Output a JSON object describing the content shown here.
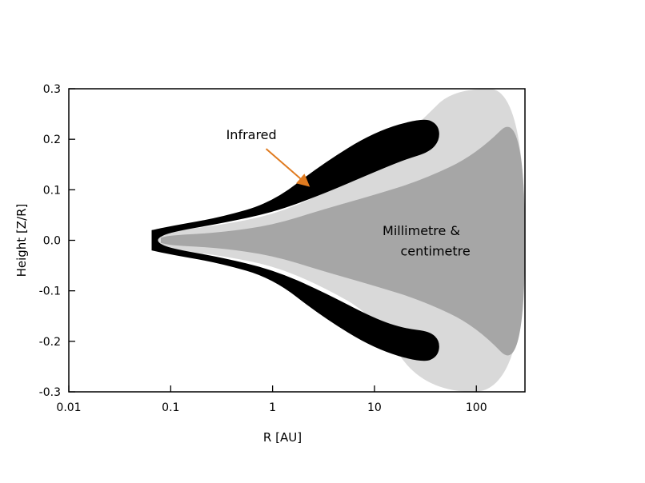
{
  "chart_data": {
    "type": "area",
    "title": "",
    "xlabel": "R [AU]",
    "ylabel": "Height [Z/R]",
    "xscale": "log",
    "xlim": [
      0.01,
      300
    ],
    "ylim": [
      -0.3,
      0.3
    ],
    "xticks": [
      {
        "value": 0.01,
        "label": "0.01"
      },
      {
        "value": 0.1,
        "label": "0.1"
      },
      {
        "value": 1,
        "label": "1"
      },
      {
        "value": 10,
        "label": "10"
      },
      {
        "value": 100,
        "label": "100"
      }
    ],
    "yticks": [
      {
        "value": 0.3,
        "label": "0.3"
      },
      {
        "value": 0.2,
        "label": "0.2"
      },
      {
        "value": 0.1,
        "label": "0.1"
      },
      {
        "value": 0.0,
        "label": "0.0"
      },
      {
        "value": -0.1,
        "label": "-0.1"
      },
      {
        "value": -0.2,
        "label": "-0.2"
      },
      {
        "value": -0.3,
        "label": "-0.3"
      }
    ],
    "grid": false,
    "colors": {
      "light_region": "#d9d9d9",
      "dark_region": "#a6a6a6",
      "infrared_region": "#000000",
      "arrow": "#e07b20"
    },
    "annotations": [
      {
        "text": "Infrared",
        "x": 0.35,
        "y": 0.2,
        "arrow_to": [
          2.2,
          0.11
        ]
      },
      {
        "text": "Millimetre &",
        "x": 12,
        "y": 0.01
      },
      {
        "text": "centimetre",
        "x": 18,
        "y": -0.03
      }
    ],
    "series": [
      {
        "region": "light",
        "upper": [
          [
            0.07,
            0.005
          ],
          [
            0.1,
            0.018
          ],
          [
            0.3,
            0.03
          ],
          [
            1,
            0.05
          ],
          [
            3,
            0.09
          ],
          [
            10,
            0.15
          ],
          [
            30,
            0.24
          ],
          [
            60,
            0.3
          ],
          [
            300,
            0.3
          ]
        ],
        "lower": [
          [
            0.07,
            -0.005
          ],
          [
            0.1,
            -0.018
          ],
          [
            0.3,
            -0.03
          ],
          [
            1,
            -0.05
          ],
          [
            3,
            -0.09
          ],
          [
            10,
            -0.15
          ],
          [
            30,
            -0.3
          ],
          [
            300,
            -0.3
          ]
        ]
      },
      {
        "region": "dark",
        "upper": [
          [
            0.08,
            0.005
          ],
          [
            0.1,
            0.01
          ],
          [
            0.3,
            0.015
          ],
          [
            1,
            0.03
          ],
          [
            3,
            0.06
          ],
          [
            10,
            0.09
          ],
          [
            30,
            0.12
          ],
          [
            100,
            0.17
          ],
          [
            300,
            0.265
          ]
        ],
        "lower": [
          [
            0.08,
            -0.005
          ],
          [
            0.1,
            -0.01
          ],
          [
            0.3,
            -0.015
          ],
          [
            1,
            -0.03
          ],
          [
            3,
            -0.06
          ],
          [
            10,
            -0.09
          ],
          [
            30,
            -0.12
          ],
          [
            100,
            -0.17
          ],
          [
            300,
            -0.27
          ]
        ]
      },
      {
        "region": "infrared",
        "outer": [
          [
            0.065,
            0.02
          ],
          [
            0.1,
            0.028
          ],
          [
            0.3,
            0.045
          ],
          [
            1,
            0.075
          ],
          [
            3,
            0.15
          ],
          [
            10,
            0.215
          ],
          [
            30,
            0.243
          ],
          [
            42,
            0.23
          ],
          [
            44,
            0.2
          ],
          [
            35,
            0.175
          ],
          [
            20,
            0.16
          ],
          [
            10,
            0.135
          ],
          [
            3,
            0.09
          ],
          [
            1,
            0.055
          ],
          [
            0.3,
            0.033
          ],
          [
            0.1,
            0.016
          ],
          [
            0.075,
            0.005
          ],
          [
            0.075,
            -0.005
          ],
          [
            0.1,
            -0.016
          ],
          [
            0.3,
            -0.033
          ],
          [
            1,
            -0.058
          ],
          [
            3,
            -0.1
          ],
          [
            10,
            -0.155
          ],
          [
            20,
            -0.175
          ],
          [
            35,
            -0.18
          ],
          [
            44,
            -0.2
          ],
          [
            42,
            -0.23
          ],
          [
            30,
            -0.243
          ],
          [
            10,
            -0.215
          ],
          [
            3,
            -0.15
          ],
          [
            1,
            -0.075
          ],
          [
            0.3,
            -0.045
          ],
          [
            0.1,
            -0.028
          ],
          [
            0.065,
            -0.02
          ]
        ]
      }
    ]
  }
}
